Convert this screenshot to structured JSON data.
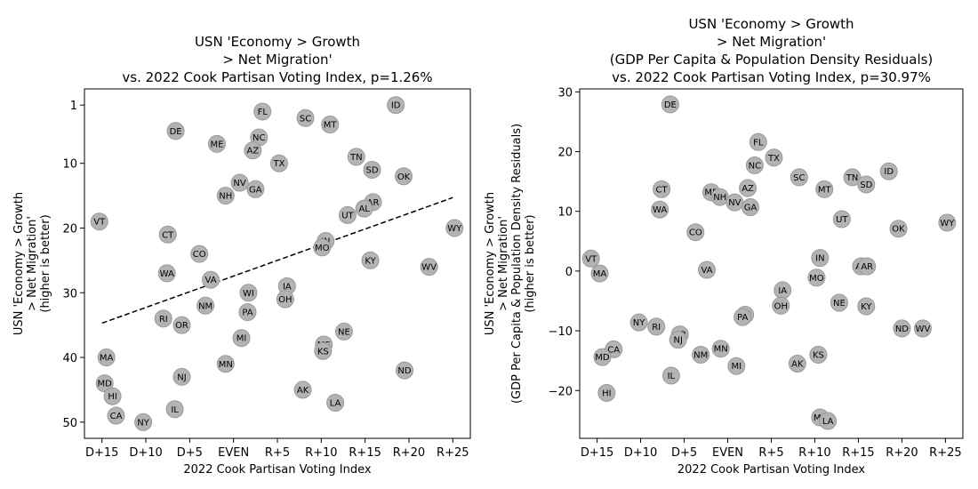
{
  "chart_data": [
    {
      "type": "scatter",
      "title_lines": [
        "USN 'Economy > Growth",
        "> Net Migration'",
        "vs. 2022 Cook Partisan Voting Index, p=1.26%"
      ],
      "xlabel": "2022 Cook Partisan Voting Index",
      "ylabel_lines": [
        "USN 'Economy > Growth",
        "> Net Migration'",
        "(higher is better)"
      ],
      "xlim": [
        -17,
        27
      ],
      "ylim": [
        52.5,
        -1.5
      ],
      "y_inverted": true,
      "xticks": [
        -15,
        -10,
        -5,
        0,
        5,
        10,
        15,
        20,
        25
      ],
      "xtick_labels": [
        "D+15",
        "D+10",
        "D+5",
        "EVEN",
        "R+5",
        "R+10",
        "R+15",
        "R+20",
        "R+25"
      ],
      "yticks": [
        1,
        10,
        20,
        30,
        40,
        50
      ],
      "ytick_labels": [
        "1",
        "10",
        "20",
        "30",
        "40",
        "50"
      ],
      "trendline": {
        "x": [
          -15,
          25
        ],
        "y": [
          34.7,
          15.3
        ],
        "style": "dashed"
      },
      "points": [
        {
          "label": "ID",
          "x": 18.5,
          "y": 1
        },
        {
          "label": "FL",
          "x": 3.3,
          "y": 2
        },
        {
          "label": "SC",
          "x": 8.2,
          "y": 3
        },
        {
          "label": "MT",
          "x": 11,
          "y": 4
        },
        {
          "label": "DE",
          "x": -6.6,
          "y": 5
        },
        {
          "label": "NC",
          "x": 2.9,
          "y": 6
        },
        {
          "label": "ME",
          "x": -1.9,
          "y": 7
        },
        {
          "label": "AZ",
          "x": 2.2,
          "y": 8
        },
        {
          "label": "TN",
          "x": 14,
          "y": 9
        },
        {
          "label": "TX",
          "x": 5.2,
          "y": 10
        },
        {
          "label": "SD",
          "x": 15.8,
          "y": 11
        },
        {
          "label": "OK",
          "x": 19.4,
          "y": 12
        },
        {
          "label": "NV",
          "x": 0.7,
          "y": 13
        },
        {
          "label": "GA",
          "x": 2.5,
          "y": 14
        },
        {
          "label": "NH",
          "x": -0.9,
          "y": 15
        },
        {
          "label": "AR",
          "x": 15.9,
          "y": 16
        },
        {
          "label": "AL",
          "x": 14.9,
          "y": 17
        },
        {
          "label": "UT",
          "x": 13,
          "y": 18
        },
        {
          "label": "VT",
          "x": -15.3,
          "y": 19
        },
        {
          "label": "WY",
          "x": 25.2,
          "y": 20
        },
        {
          "label": "CT",
          "x": -7.5,
          "y": 21
        },
        {
          "label": "IN",
          "x": 10.5,
          "y": 22
        },
        {
          "label": "MO",
          "x": 10.1,
          "y": 23
        },
        {
          "label": "CO",
          "x": -3.9,
          "y": 24
        },
        {
          "label": "KY",
          "x": 15.6,
          "y": 25
        },
        {
          "label": "WV",
          "x": 22.3,
          "y": 26
        },
        {
          "label": "WA",
          "x": -7.6,
          "y": 27
        },
        {
          "label": "VA",
          "x": -2.6,
          "y": 28
        },
        {
          "label": "IA",
          "x": 6.1,
          "y": 29
        },
        {
          "label": "WI",
          "x": 1.7,
          "y": 30
        },
        {
          "label": "OH",
          "x": 5.9,
          "y": 31
        },
        {
          "label": "NM",
          "x": -3.2,
          "y": 32
        },
        {
          "label": "PA",
          "x": 1.6,
          "y": 33
        },
        {
          "label": "RI",
          "x": -8,
          "y": 34
        },
        {
          "label": "OR",
          "x": -5.9,
          "y": 35
        },
        {
          "label": "NE",
          "x": 12.6,
          "y": 36
        },
        {
          "label": "MI",
          "x": 0.9,
          "y": 37
        },
        {
          "label": "MS",
          "x": 10.3,
          "y": 38
        },
        {
          "label": "KS",
          "x": 10.2,
          "y": 39
        },
        {
          "label": "MA",
          "x": -14.5,
          "y": 40
        },
        {
          "label": "MN",
          "x": -0.9,
          "y": 41
        },
        {
          "label": "ND",
          "x": 19.5,
          "y": 42
        },
        {
          "label": "NJ",
          "x": -5.9,
          "y": 43
        },
        {
          "label": "MD",
          "x": -14.7,
          "y": 44
        },
        {
          "label": "AK",
          "x": 7.9,
          "y": 45
        },
        {
          "label": "HI",
          "x": -13.8,
          "y": 46
        },
        {
          "label": "LA",
          "x": 11.6,
          "y": 47
        },
        {
          "label": "IL",
          "x": -6.7,
          "y": 48
        },
        {
          "label": "CA",
          "x": -13.4,
          "y": 49
        },
        {
          "label": "NY",
          "x": -10.3,
          "y": 50
        }
      ]
    },
    {
      "type": "scatter",
      "title_lines": [
        "USN 'Economy > Growth",
        "> Net Migration'",
        "(GDP Per Capita & Population Density Residuals)",
        "vs. 2022 Cook Partisan Voting Index, p=30.97%"
      ],
      "xlabel": "2022 Cook Partisan Voting Index",
      "ylabel_lines": [
        "USN 'Economy > Growth",
        "> Net Migration'",
        "(GDP Per Capita & Population Density Residuals)",
        "(higher is better)"
      ],
      "xlim": [
        -17,
        27
      ],
      "ylim": [
        -28,
        30.5
      ],
      "y_inverted": false,
      "xticks": [
        -15,
        -10,
        -5,
        0,
        5,
        10,
        15,
        20,
        25
      ],
      "xtick_labels": [
        "D+15",
        "D+10",
        "D+5",
        "EVEN",
        "R+5",
        "R+10",
        "R+15",
        "R+20",
        "R+25"
      ],
      "yticks": [
        -20,
        -10,
        0,
        10,
        20,
        30
      ],
      "ytick_labels": [
        "−20",
        "−10",
        "0",
        "10",
        "20",
        "30"
      ],
      "points": [
        {
          "label": "DE",
          "x": -6.6,
          "y": 27.9
        },
        {
          "label": "FL",
          "x": 3.5,
          "y": 21.6
        },
        {
          "label": "TX",
          "x": 5.3,
          "y": 19
        },
        {
          "label": "NC",
          "x": 3.1,
          "y": 17.7
        },
        {
          "label": "ID",
          "x": 18.5,
          "y": 16.7
        },
        {
          "label": "SC",
          "x": 8.2,
          "y": 15.7
        },
        {
          "label": "TN",
          "x": 14.3,
          "y": 15.7
        },
        {
          "label": "SD",
          "x": 15.9,
          "y": 14.5
        },
        {
          "label": "AZ",
          "x": 2.3,
          "y": 13.9
        },
        {
          "label": "CT",
          "x": -7.6,
          "y": 13.7
        },
        {
          "label": "MT",
          "x": 11.1,
          "y": 13.7
        },
        {
          "label": "ME",
          "x": -1.9,
          "y": 13.2
        },
        {
          "label": "NH",
          "x": -0.9,
          "y": 12.4
        },
        {
          "label": "NV",
          "x": 0.8,
          "y": 11.5
        },
        {
          "label": "GA",
          "x": 2.6,
          "y": 10.7
        },
        {
          "label": "WA",
          "x": -7.8,
          "y": 10.3
        },
        {
          "label": "UT",
          "x": 13.1,
          "y": 8.7
        },
        {
          "label": "WY",
          "x": 25.2,
          "y": 8.1
        },
        {
          "label": "OK",
          "x": 19.6,
          "y": 7.1
        },
        {
          "label": "CO",
          "x": -3.7,
          "y": 6.5
        },
        {
          "label": "VT",
          "x": -15.7,
          "y": 2.1
        },
        {
          "label": "IN",
          "x": 10.6,
          "y": 2.2
        },
        {
          "label": "AL",
          "x": 15.3,
          "y": 0.8
        },
        {
          "label": "AR",
          "x": 16,
          "y": 0.8
        },
        {
          "label": "VA",
          "x": -2.4,
          "y": 0.2
        },
        {
          "label": "MA",
          "x": -14.7,
          "y": -0.4
        },
        {
          "label": "MO",
          "x": 10.2,
          "y": -1.1
        },
        {
          "label": "IA",
          "x": 6.3,
          "y": -3.2
        },
        {
          "label": "NE",
          "x": 12.8,
          "y": -5.3
        },
        {
          "label": "OH",
          "x": 6.1,
          "y": -5.8
        },
        {
          "label": "KY",
          "x": 15.9,
          "y": -5.9
        },
        {
          "label": "WI",
          "x": 2,
          "y": -7.3
        },
        {
          "label": "PA",
          "x": 1.7,
          "y": -7.7
        },
        {
          "label": "NY",
          "x": -10.2,
          "y": -8.6
        },
        {
          "label": "RI",
          "x": -8.2,
          "y": -9.3
        },
        {
          "label": "ND",
          "x": 20,
          "y": -9.6
        },
        {
          "label": "WV",
          "x": 22.4,
          "y": -9.6
        },
        {
          "label": "OR",
          "x": -5.5,
          "y": -10.6
        },
        {
          "label": "NJ",
          "x": -5.7,
          "y": -11.5
        },
        {
          "label": "CA",
          "x": -13.1,
          "y": -13.1
        },
        {
          "label": "MN",
          "x": -0.8,
          "y": -13
        },
        {
          "label": "MD",
          "x": -14.4,
          "y": -14.4
        },
        {
          "label": "NM",
          "x": -3.1,
          "y": -14
        },
        {
          "label": "KS",
          "x": 10.4,
          "y": -14
        },
        {
          "label": "AK",
          "x": 8,
          "y": -15.5
        },
        {
          "label": "MI",
          "x": 1,
          "y": -15.9
        },
        {
          "label": "IL",
          "x": -6.5,
          "y": -17.5
        },
        {
          "label": "HI",
          "x": -13.9,
          "y": -20.4
        },
        {
          "label": "MS",
          "x": 10.6,
          "y": -24.5
        },
        {
          "label": "LA",
          "x": 11.5,
          "y": -25.1
        }
      ]
    }
  ]
}
